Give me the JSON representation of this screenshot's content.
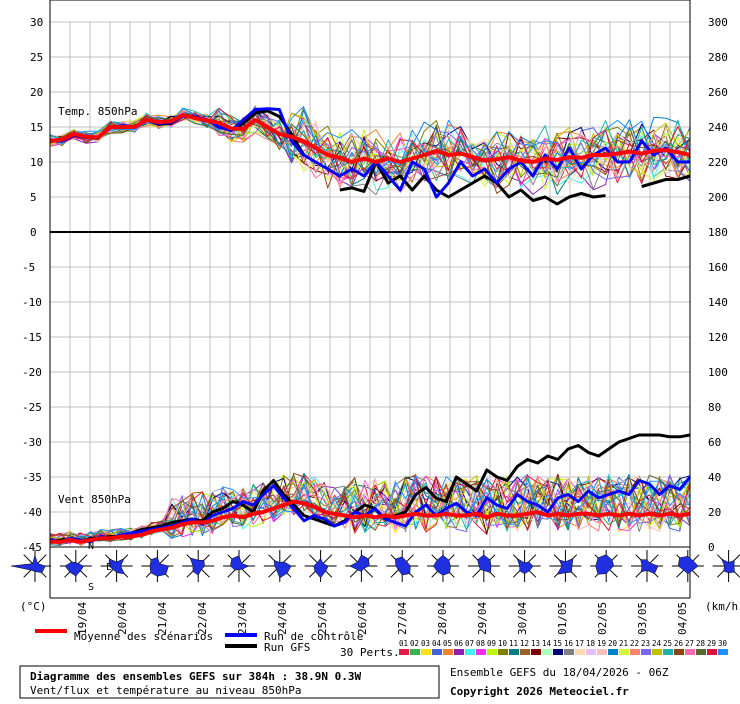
{
  "chart_data": [
    {
      "type": "line",
      "panel_label": "Temp. 850hPa",
      "y_left_ticks": [
        "30",
        "25",
        "20",
        "15",
        "10",
        "5",
        "0"
      ],
      "y_left_range": [
        0,
        30
      ],
      "y_right_ticks": [
        "300",
        "280",
        "260",
        "240",
        "220",
        "200",
        "180"
      ],
      "x_tick_labels": [
        "19/04",
        "20/04",
        "21/04",
        "22/04",
        "23/04",
        "24/04",
        "25/04",
        "26/04",
        "27/04",
        "28/04",
        "29/04",
        "30/04",
        "01/05",
        "02/05",
        "03/05",
        "04/05"
      ],
      "grid": true,
      "series": [
        {
          "name": "Moyenne des scénarios",
          "color": "#ff0000",
          "values": [
            13,
            13.2,
            14,
            13.6,
            13.5,
            15,
            15,
            15,
            16,
            15.7,
            15.8,
            16.7,
            16.3,
            15.9,
            15.6,
            14.8,
            14.7,
            16,
            15,
            14,
            13.6,
            13,
            12,
            11,
            10.6,
            10,
            10.5,
            10,
            10.5,
            10,
            10.5,
            11,
            11.6,
            11,
            11.2,
            10.7,
            10.2,
            10.4,
            10.7,
            10.2,
            10,
            10.5,
            10.3,
            10.7,
            10.6,
            11,
            11,
            11.2,
            11.5,
            11.2,
            11.6,
            11.7,
            11.4,
            11
          ]
        },
        {
          "name": "Run de contrôle",
          "color": "#0000ff",
          "values": [
            13,
            13,
            13.8,
            13.5,
            13.5,
            15,
            15.2,
            15,
            16,
            15.5,
            15.6,
            16.5,
            16.5,
            16,
            15,
            14.5,
            16,
            17.5,
            17.6,
            17.5,
            13,
            11,
            10,
            9,
            8,
            9,
            8,
            10,
            8,
            6,
            10,
            9,
            5,
            7,
            10,
            8,
            9,
            7,
            9,
            10,
            8,
            11,
            9,
            12,
            9,
            11,
            12,
            10,
            10,
            13,
            11,
            12,
            10,
            10
          ]
        },
        {
          "name": "Run GFS",
          "color": "#000000",
          "values": [
            13,
            13,
            14,
            13.6,
            13.4,
            15,
            15,
            15,
            16,
            15.4,
            15.5,
            16.7,
            16.3,
            16,
            15,
            14.5,
            15.5,
            17,
            17.3,
            16.5,
            14,
            11,
            null,
            null,
            6,
            6.3,
            5.8,
            10,
            7,
            8,
            6,
            8,
            6,
            5,
            6,
            7,
            8,
            7,
            5,
            6,
            4.5,
            5,
            4,
            5,
            5.5,
            5,
            5.2,
            null,
            null,
            6.5,
            7,
            7.5,
            7.5,
            8
          ]
        }
      ]
    },
    {
      "type": "line",
      "panel_label": "Vent 850hPa",
      "y_left_ticks": [
        "0",
        "-5",
        "-10",
        "-15",
        "-20",
        "-25",
        "-30",
        "-35",
        "-40",
        "-45"
      ],
      "y_left_range": [
        -45,
        0
      ],
      "y_right_ticks": [
        "180",
        "160",
        "140",
        "120",
        "100",
        "80",
        "60",
        "40",
        "20",
        "0"
      ],
      "y_right_unit": "km/h",
      "grid": true,
      "series": [
        {
          "name": "Moyenne des scénarios",
          "color": "#ff0000",
          "values": [
            3,
            3,
            4,
            3,
            4,
            5,
            5,
            6,
            6,
            7,
            9,
            10,
            11,
            13,
            14,
            14,
            15,
            17,
            18,
            17,
            19,
            20,
            22,
            24,
            26,
            25,
            23,
            20,
            19,
            18,
            17,
            18,
            17,
            18,
            17,
            18,
            19,
            18,
            18,
            19,
            18,
            18,
            19,
            17,
            19,
            18,
            18,
            19,
            20,
            18,
            19,
            18,
            19,
            19,
            18,
            19,
            18,
            19,
            18,
            19,
            18,
            19,
            18,
            19
          ]
        },
        {
          "name": "Run de contrôle",
          "color": "#0000ff",
          "values": [
            4,
            3,
            5,
            4,
            3,
            6,
            5,
            7,
            8,
            9,
            10,
            11,
            12,
            14,
            16,
            13,
            18,
            20,
            22,
            26,
            24,
            30,
            35,
            28,
            22,
            15,
            18,
            16,
            12,
            14,
            20,
            18,
            22,
            16,
            14,
            12,
            20,
            24,
            18,
            22,
            25,
            20,
            18,
            28,
            24,
            22,
            30,
            26,
            24,
            20,
            28,
            30,
            26,
            32,
            28,
            30,
            32,
            30,
            38,
            36,
            30,
            35,
            33,
            40
          ]
        },
        {
          "name": "Run GFS",
          "color": "#000000",
          "values": [
            3,
            4,
            4,
            3,
            5,
            5,
            6,
            6,
            8,
            10,
            11,
            12,
            14,
            15,
            16,
            15,
            20,
            22,
            26,
            24,
            20,
            32,
            38,
            30,
            24,
            18,
            16,
            14,
            12,
            15,
            20,
            24,
            22,
            16,
            18,
            20,
            30,
            34,
            28,
            26,
            40,
            36,
            32,
            44,
            40,
            38,
            46,
            50,
            48,
            52,
            50,
            56,
            58,
            54,
            52,
            56,
            60,
            62,
            64,
            64,
            64,
            63,
            63,
            64
          ]
        }
      ]
    }
  ],
  "units": {
    "left": "(°C)",
    "right": "(km/h)"
  },
  "wind_rose_labels": {
    "n": "N",
    "s": "S",
    "e": "E"
  },
  "legend": {
    "mean": "Moyenne des scénarios",
    "control": "Run de contrôle",
    "gfs": "Run GFS",
    "perts": "30 Perts.",
    "pert_numbers": [
      "01",
      "02",
      "03",
      "04",
      "05",
      "06",
      "07",
      "08",
      "09",
      "10",
      "11",
      "12",
      "13",
      "14",
      "15",
      "16",
      "17",
      "18",
      "19",
      "20",
      "21",
      "22",
      "23",
      "24",
      "25",
      "26",
      "27",
      "28",
      "29",
      "30"
    ]
  },
  "colors": {
    "pert_colors": [
      "#e6194b",
      "#3cb44b",
      "#ffe119",
      "#4363d8",
      "#f58231",
      "#911eb4",
      "#46f0f0",
      "#f032e6",
      "#bcf60c",
      "#808000",
      "#008080",
      "#9a6324",
      "#800000",
      "#aaffc3",
      "#000075",
      "#808080",
      "#ffd8b1",
      "#e6beff",
      "#fabebe",
      "#0082c8",
      "#d2f53c",
      "#fa8072",
      "#7b68ee",
      "#c0c000",
      "#20b2aa",
      "#8b4513",
      "#ff69b4",
      "#556b2f",
      "#dc143c",
      "#1e90ff"
    ],
    "mean": "#ff0000",
    "control": "#0000ff",
    "gfs": "#000000",
    "rose_fill": "#2030e0",
    "grid": "#c0c0c0"
  },
  "footer": {
    "title": "Diagramme des ensembles GEFS sur 384h : 38.9N 0.3W",
    "subtitle": "Vent/flux et température au niveau 850hPa",
    "run": "Ensemble GEFS du 18/04/2026 - 06Z",
    "copyright": "Copyright 2026 Meteociel.fr"
  }
}
